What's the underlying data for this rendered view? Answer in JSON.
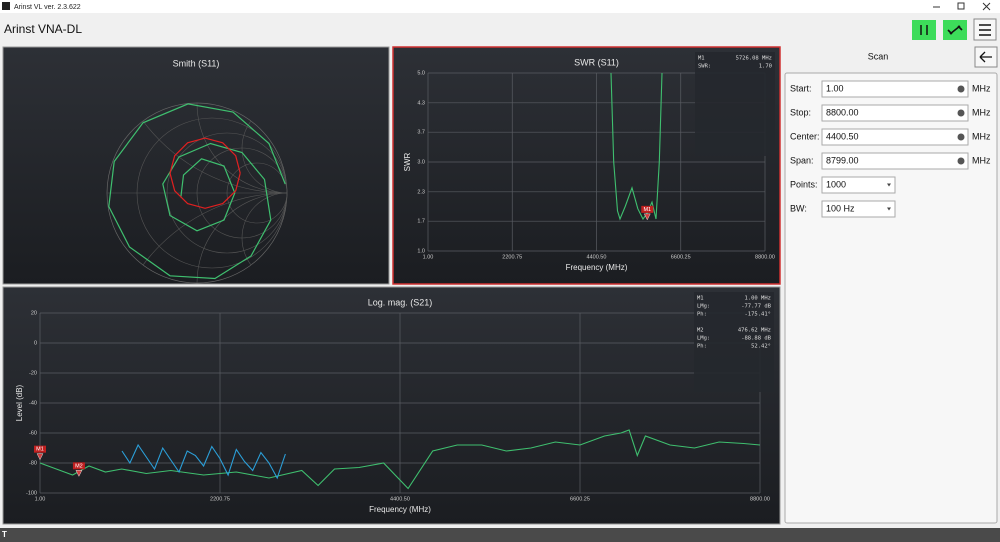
{
  "window": {
    "title": "Arinst VL ver. 2.3.622"
  },
  "app": {
    "title": "Arinst VNA-DL"
  },
  "chart_data": [
    {
      "type": "smith",
      "title": "Smith (S11)",
      "series": [
        {
          "color": "#3fbf6f",
          "x": [
            0.98,
            0.8,
            0.4,
            -0.1,
            -0.6,
            -0.92,
            -0.98,
            -0.75,
            -0.3,
            0.2,
            0.6,
            0.82,
            0.75,
            0.5,
            0.15,
            -0.2,
            -0.38,
            -0.3,
            0,
            0.3,
            0.42,
            0.3,
            0.05,
            -0.15,
            -0.18
          ],
          "values": [
            0.1,
            0.55,
            0.9,
            0.99,
            0.78,
            0.35,
            -0.15,
            -0.6,
            -0.92,
            -0.95,
            -0.7,
            -0.3,
            0.15,
            0.45,
            0.55,
            0.4,
            0.1,
            -0.25,
            -0.42,
            -0.3,
            0,
            0.3,
            0.38,
            0.2,
            -0.05
          ]
        },
        {
          "color": "#e02020",
          "x": [
            0.48,
            0.43,
            0.285,
            0.09,
            -0.105,
            -0.248,
            -0.3,
            -0.248,
            -0.105,
            0.09,
            0.285,
            0.43,
            0.48
          ],
          "values": [
            0.22,
            0.415,
            0.558,
            0.61,
            0.558,
            0.415,
            0.22,
            0.025,
            -0.118,
            -0.17,
            -0.118,
            0.025,
            0.22
          ]
        }
      ]
    },
    {
      "type": "line",
      "title": "SWR (S11)",
      "x_label": "Frequency (MHz)",
      "y_label": "SWR",
      "xlim": [
        1,
        8800
      ],
      "xticks": [
        {
          "value": 1,
          "label": "1.00"
        },
        2200.75,
        {
          "value": 4400.5,
          "label": "4400.50"
        },
        6600.25,
        {
          "value": 8800,
          "label": "8800.00"
        }
      ],
      "ylim": [
        1,
        5
      ],
      "yticks": [
        {
          "value": 1,
          "label": "1.0"
        },
        {
          "value": 1.67,
          "label": "1.7"
        },
        {
          "value": 2.33,
          "label": "2.3"
        },
        {
          "value": 3,
          "label": "3.0"
        },
        {
          "value": 3.67,
          "label": "3.7"
        },
        {
          "value": 4.33,
          "label": "4.3"
        },
        {
          "value": 5,
          "label": "5.0"
        }
      ],
      "grid": true,
      "series": [
        {
          "color": "#3fbf6f",
          "x": [
            4779,
            4850,
            4950,
            5014,
            5150,
            5327,
            5480,
            5614,
            5720,
            5850,
            5953,
            6040,
            6110
          ],
          "values": [
            5,
            3.0,
            1.9,
            1.72,
            2.0,
            2.42,
            1.95,
            1.72,
            1.85,
            2.1,
            1.72,
            3.0,
            5
          ]
        }
      ],
      "markers": [
        {
          "name": "M1",
          "x": 5726.08,
          "value": 1.7,
          "readout": [
            [
              "M1",
              "5726.08 MHz"
            ],
            [
              "SWR:",
              "1.70"
            ]
          ]
        }
      ]
    },
    {
      "type": "line",
      "title": "Log. mag. (S21)",
      "x_label": "Frequency (MHz)",
      "y_label": "Level (dB)",
      "xlim": [
        1,
        8800
      ],
      "xticks": [
        {
          "value": 1,
          "label": "1.00"
        },
        2200.75,
        {
          "value": 4400.5,
          "label": "4400.50"
        },
        6600.25,
        {
          "value": 8800,
          "label": "8800.00"
        }
      ],
      "ylim": [
        -100,
        20
      ],
      "yticks": [
        -100,
        -80,
        -60,
        -40,
        -20,
        0,
        20
      ],
      "grid": true,
      "series": [
        {
          "color": "#3fbf6f",
          "x": [
            1,
            200,
            400,
            600,
            800,
            1000,
            1300,
            1600,
            2000,
            2400,
            2800,
            3200,
            3400,
            3600,
            3900,
            4200,
            4500,
            4800,
            5100,
            5400,
            5700,
            6000,
            6300,
            6600,
            6900,
            7100,
            7200,
            7300,
            7400,
            7700,
            8000,
            8300,
            8600,
            8800
          ],
          "values": [
            -80,
            -84,
            -88,
            -82,
            -86,
            -84,
            -87,
            -85,
            -88,
            -86,
            -90,
            -85,
            -95,
            -84,
            -83,
            -80,
            -97,
            -72,
            -68,
            -68,
            -72,
            -70,
            -66,
            -68,
            -62,
            -60,
            -58,
            -75,
            -62,
            -68,
            -70,
            -66,
            -67,
            -68
          ]
        },
        {
          "color": "#2b9fd8",
          "x": [
            1003,
            1100,
            1200,
            1300,
            1400,
            1500,
            1600,
            1700,
            1800,
            1900,
            2000,
            2100,
            2200,
            2300,
            2400,
            2500,
            2600,
            2700,
            2800,
            2900,
            3000
          ],
          "values": [
            -72,
            -80,
            -68,
            -76,
            -84,
            -70,
            -78,
            -86,
            -72,
            -75,
            -82,
            -69,
            -77,
            -88,
            -71,
            -79,
            -85,
            -73,
            -80,
            -90,
            -74
          ]
        }
      ],
      "markers": [
        {
          "name": "M1",
          "x": 1,
          "value": -77.77,
          "readout": [
            [
              "M1",
              "1.00 MHz"
            ],
            [
              "LMg:",
              "-77.77 dB"
            ],
            [
              "Ph:",
              "-175.41°"
            ]
          ]
        },
        {
          "name": "M2",
          "x": 476.62,
          "value": -88.88,
          "readout": [
            [
              "M2",
              "476.62 MHz"
            ],
            [
              "LMg:",
              "-88.88 dB"
            ],
            [
              "Ph:",
              "52.42°"
            ]
          ]
        }
      ]
    }
  ],
  "scan": {
    "title": "Scan",
    "fields": [
      {
        "label": "Start:",
        "value": "1.00",
        "unit": "MHz"
      },
      {
        "label": "Stop:",
        "value": "8800.00",
        "unit": "MHz"
      },
      {
        "label": "Center:",
        "value": "4400.50",
        "unit": "MHz"
      },
      {
        "label": "Span:",
        "value": "8799.00",
        "unit": "MHz"
      }
    ],
    "selects": [
      {
        "label": "Points:",
        "value": "1000"
      },
      {
        "label": "BW:",
        "value": "100 Hz"
      }
    ]
  },
  "status": "T"
}
